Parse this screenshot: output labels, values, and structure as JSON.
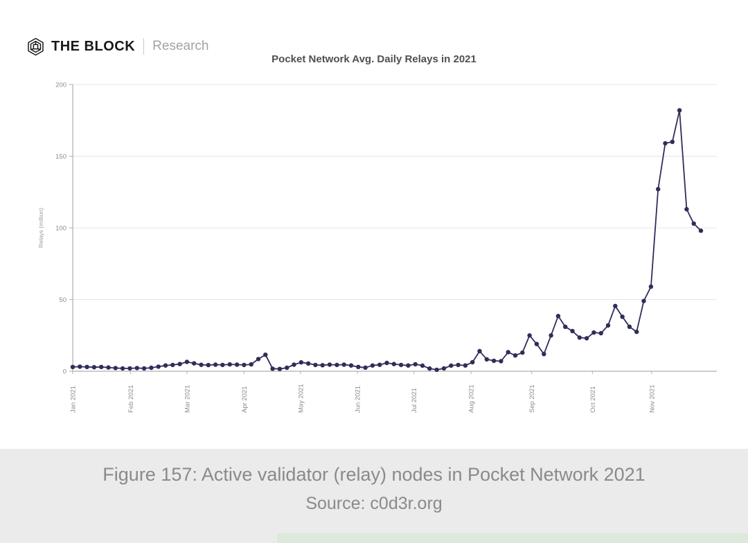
{
  "page": {
    "background": "#ebebeb",
    "card_background": "#ffffff",
    "bottom_strip_color": "#dde9dc"
  },
  "header": {
    "logo": {
      "icon": "block-cube-logo-icon",
      "brand": "THE BLOCK",
      "sub": "Research"
    }
  },
  "chart_data": {
    "type": "line",
    "title": "Pocket Network Avg. Daily Relays in 2021",
    "xlabel": "",
    "ylabel": "Relays (million)",
    "ylim": [
      0,
      200
    ],
    "yticks": [
      0,
      50,
      100,
      150,
      200
    ],
    "x_tick_labels": [
      "Jan 2021",
      "Feb 2021",
      "Mar 2021",
      "Apr 2021",
      "May 2021",
      "Jun 2021",
      "Jul 2021",
      "Aug 2021",
      "Sep 2021",
      "Oct 2021",
      "Nov 2021"
    ],
    "x_tick_positions": [
      0,
      8.1,
      16,
      24,
      31.9,
      39.9,
      47.8,
      55.8,
      64.3,
      72.8,
      81.1
    ],
    "grid": true,
    "legend": "none",
    "line_color": "#2f2d5a",
    "marker": "circle",
    "axis_color": "#aeaeae",
    "grid_color": "#e4e4e4",
    "tick_label_color": "#8c8c8c",
    "series": [
      {
        "name": "Avg. Daily Relays",
        "values": [
          3,
          3.2,
          3,
          2.8,
          3,
          2.6,
          2.2,
          2,
          2,
          2.2,
          2,
          2.4,
          3.2,
          4,
          4.4,
          5,
          6.5,
          5.5,
          4.5,
          4.3,
          4.6,
          4.4,
          4.8,
          4.6,
          4.4,
          4.8,
          8.5,
          11.5,
          1.8,
          1.6,
          2.4,
          4.6,
          6.2,
          5.4,
          4.4,
          4.2,
          4.6,
          4.4,
          4.6,
          4,
          3,
          2.5,
          4,
          4.5,
          5.8,
          5,
          4.4,
          4,
          4.9,
          3.9,
          1.9,
          1,
          2,
          3.9,
          4.4,
          4,
          6.3,
          14,
          8.3,
          7.3,
          7,
          13.3,
          11,
          13,
          25,
          19,
          12,
          25,
          38.5,
          31,
          28,
          23.5,
          23,
          27,
          26.5,
          32,
          45.5,
          38,
          31,
          27.5,
          49,
          59,
          127,
          159,
          160,
          182,
          113,
          103,
          98
        ]
      }
    ]
  },
  "caption": {
    "line1": "Figure 157: Active validator (relay) nodes in Pocket Network 2021",
    "line2": "Source: c0d3r.org"
  }
}
